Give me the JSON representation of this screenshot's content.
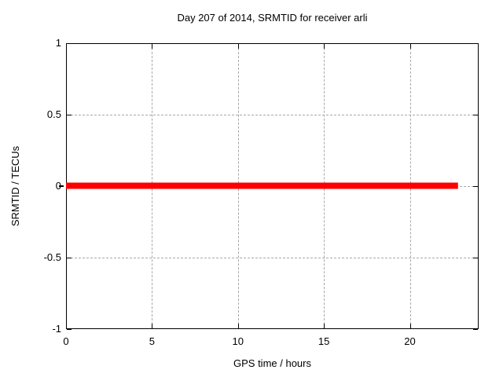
{
  "chart_data": {
    "type": "line",
    "title": "Day 207 of 2014, SRMTID for receiver arli",
    "xlabel": "GPS time / hours",
    "ylabel": "SRMTID / TECUs",
    "xlim": [
      0,
      24
    ],
    "ylim": [
      -1,
      1
    ],
    "xticks": [
      0,
      5,
      10,
      15,
      20
    ],
    "yticks": [
      1,
      0.5,
      0,
      -0.5,
      -1
    ],
    "grid": true,
    "legend": "none",
    "series": [
      {
        "name": "SRMTID",
        "color": "#ff0000",
        "linewidth": 8,
        "x": [
          0,
          22.8
        ],
        "y": [
          0,
          0
        ]
      }
    ],
    "marks": [
      {
        "type": "outward-tick-left",
        "y": 0
      }
    ],
    "colors": {
      "background": "#ffffff",
      "border": "#000000",
      "grid": "#a8a8a8",
      "text": "#000000"
    }
  }
}
